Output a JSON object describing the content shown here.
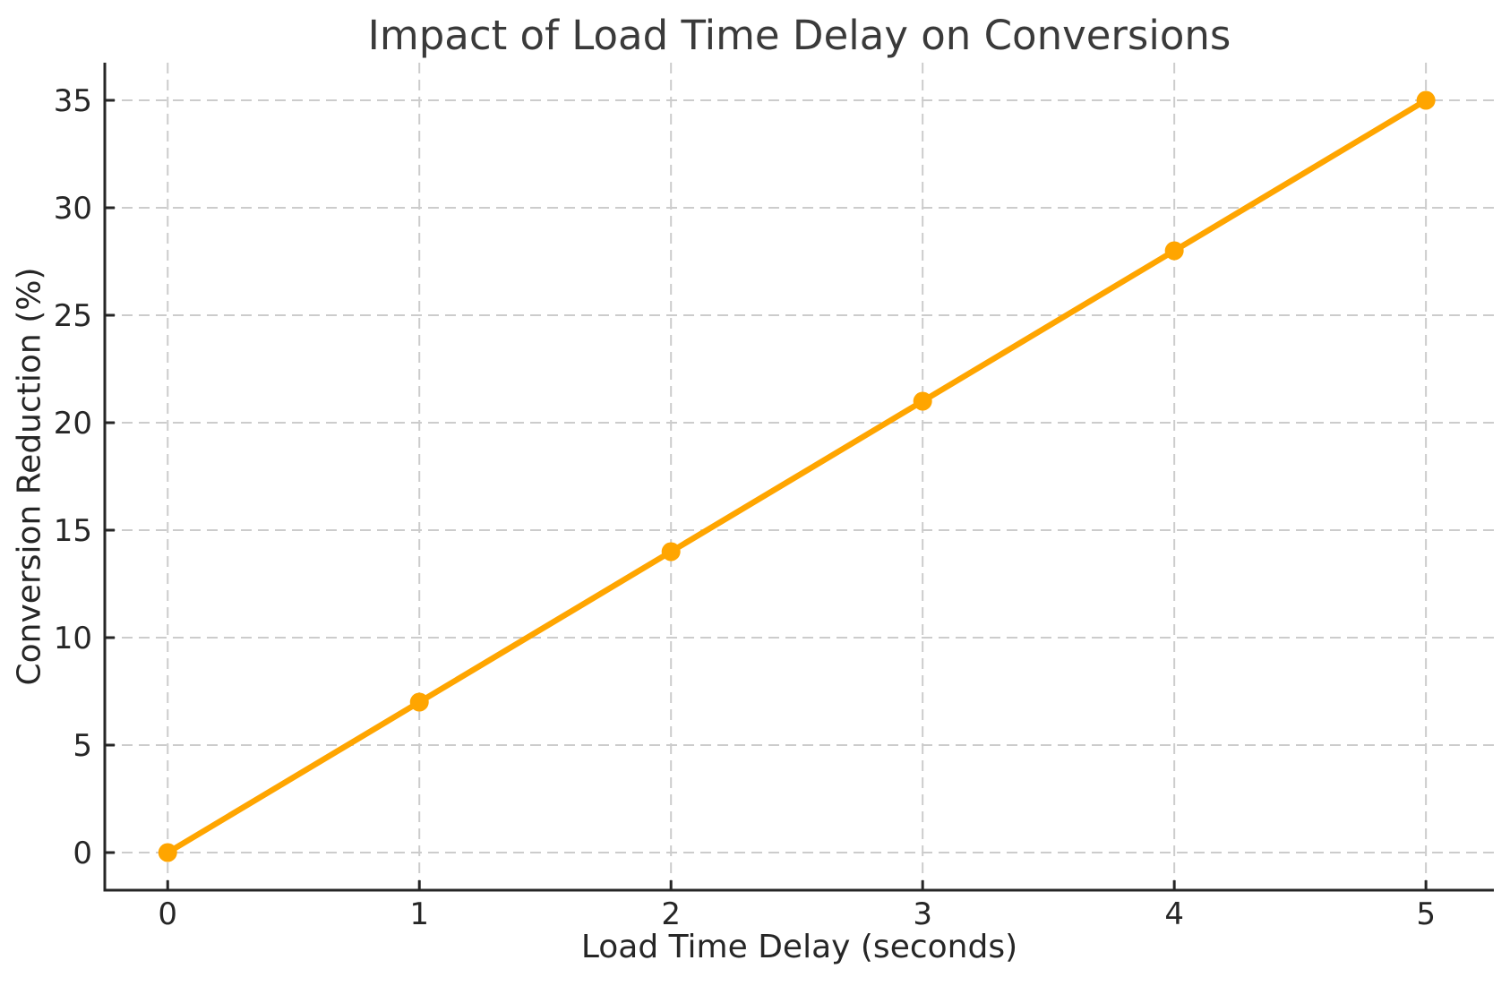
{
  "chart_data": {
    "type": "line",
    "title": "Impact of Load Time Delay on Conversions",
    "xlabel": "Load Time Delay (seconds)",
    "ylabel": "Conversion Reduction (%)",
    "x": [
      0,
      1,
      2,
      3,
      4,
      5
    ],
    "series": [
      {
        "name": "Conversion Reduction (%)",
        "values": [
          0,
          7,
          14,
          21,
          28,
          35
        ]
      }
    ],
    "xticks": [
      0,
      1,
      2,
      3,
      4,
      5
    ],
    "yticks": [
      0,
      5,
      10,
      15,
      20,
      25,
      30,
      35
    ],
    "xlim": [
      -0.25,
      5.27
    ],
    "ylim": [
      -1.75,
      36.75
    ],
    "grid": true,
    "grid_linestyle": "dashed",
    "legend": "none",
    "marker": "circle",
    "tick_direction": "in",
    "colors": {
      "line": "#FFA500",
      "marker": "#FFA500",
      "grid": "#cccccc",
      "spine": "#262626",
      "tick_label": "#262626",
      "axis_label": "#262626",
      "title": "#3a3a3a",
      "background": "#ffffff"
    }
  }
}
